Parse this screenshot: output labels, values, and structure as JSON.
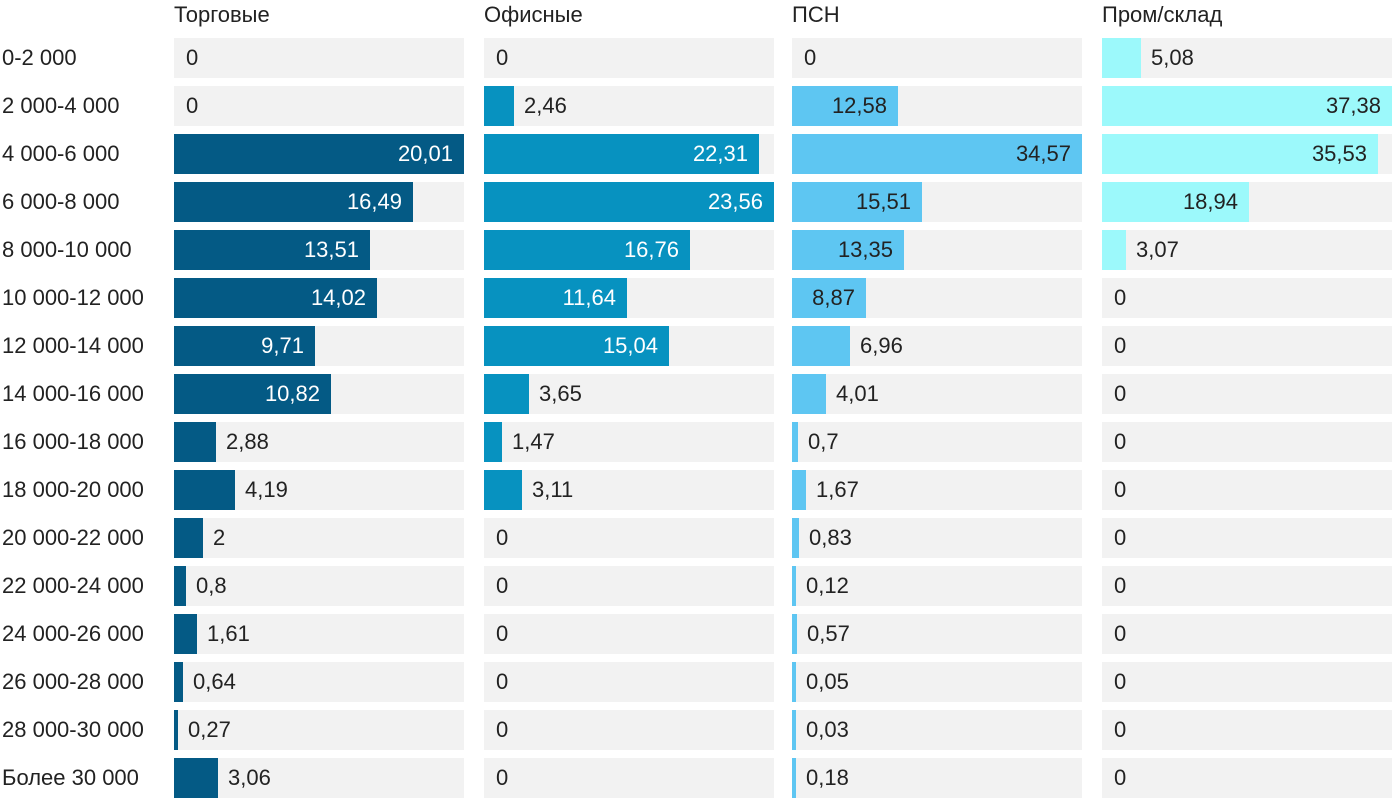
{
  "chart_data": {
    "type": "bar",
    "orientation": "horizontal",
    "layout": "small-multiples",
    "categories": [
      "0-2 000",
      "2 000-4 000",
      "4 000-6 000",
      "6 000-8 000",
      "8 000-10 000",
      "10 000-12 000",
      "12 000-14 000",
      "14 000-16 000",
      "16 000-18 000",
      "18 000-20 000",
      "20 000-22 000",
      "22 000-24 000",
      "24 000-26 000",
      "26 000-28 000",
      "28 000-30 000",
      "Более 30 000"
    ],
    "series": [
      {
        "name": "Торговые",
        "color": "#045a85",
        "max": 20.01,
        "values": [
          0,
          0,
          20.01,
          16.49,
          13.51,
          14.02,
          9.71,
          10.82,
          2.88,
          4.19,
          2,
          0.8,
          1.61,
          0.64,
          0.27,
          3.06
        ],
        "labels": [
          "0",
          "0",
          "20,01",
          "16,49",
          "13,51",
          "14,02",
          "9,71",
          "10,82",
          "2,88",
          "4,19",
          "2",
          "0,8",
          "1,61",
          "0,64",
          "0,27",
          "3,06"
        ]
      },
      {
        "name": "Офисные",
        "color": "#0792c0",
        "max": 23.56,
        "values": [
          0,
          2.46,
          22.31,
          23.56,
          16.76,
          11.64,
          15.04,
          3.65,
          1.47,
          3.11,
          0,
          0,
          0,
          0,
          0,
          0
        ],
        "labels": [
          "0",
          "2,46",
          "22,31",
          "23,56",
          "16,76",
          "11,64",
          "15,04",
          "3,65",
          "1,47",
          "3,11",
          "0",
          "0",
          "0",
          "0",
          "0",
          "0"
        ]
      },
      {
        "name": "ПСН",
        "color": "#5ec6f2",
        "max": 34.57,
        "values": [
          0,
          12.58,
          34.57,
          15.51,
          13.35,
          8.87,
          6.96,
          4.01,
          0.7,
          1.67,
          0.83,
          0.12,
          0.57,
          0.05,
          0.03,
          0.18
        ],
        "labels": [
          "0",
          "12,58",
          "34,57",
          "15,51",
          "13,35",
          "8,87",
          "6,96",
          "4,01",
          "0,7",
          "1,67",
          "0,83",
          "0,12",
          "0,57",
          "0,05",
          "0,03",
          "0,18"
        ]
      },
      {
        "name": "Пром/склад",
        "color": "#9cf9fb",
        "max": 37.38,
        "values": [
          5.08,
          37.38,
          35.53,
          18.94,
          3.07,
          0,
          0,
          0,
          0,
          0,
          0,
          0,
          0,
          0,
          0,
          0
        ],
        "labels": [
          "5,08",
          "37,38",
          "35,53",
          "18,94",
          "3,07",
          "0",
          "0",
          "0",
          "0",
          "0",
          "0",
          "0",
          "0",
          "0",
          "0",
          "0"
        ]
      }
    ],
    "title": "",
    "xlabel": "",
    "ylabel": "",
    "grid": false,
    "legend": "none"
  }
}
